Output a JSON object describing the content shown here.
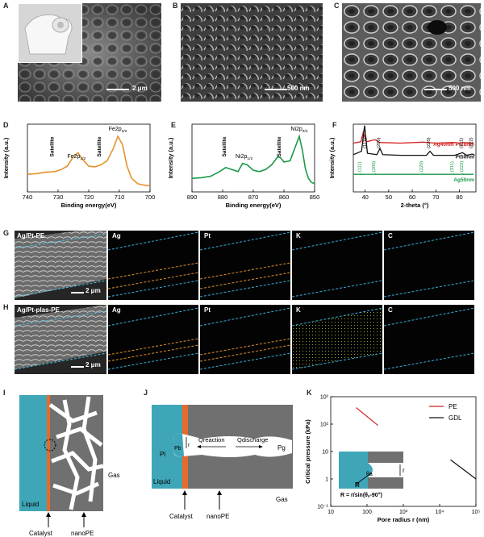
{
  "panels": {
    "A": {
      "label": "A",
      "scale": "2 μm"
    },
    "B": {
      "label": "B",
      "scale": "500 nm"
    },
    "C": {
      "label": "C",
      "scale": "500 nm"
    },
    "D": {
      "label": "D"
    },
    "E": {
      "label": "E"
    },
    "F": {
      "label": "F"
    },
    "G": {
      "label": "G",
      "title": "Ag/Pt-PE",
      "scale": "2 μm",
      "maps": [
        "Ag",
        "Pt",
        "K",
        "C"
      ]
    },
    "H": {
      "label": "H",
      "title": "Ag/Pt-plas-PE",
      "scale": "2 μm",
      "maps": [
        "Ag",
        "Pt",
        "K",
        "C"
      ]
    },
    "I": {
      "label": "I",
      "liquid": "Liquid",
      "gas": "Gas",
      "catalyst": "Catalyst",
      "nanope": "nanoPE"
    },
    "J": {
      "label": "J",
      "pl": "Pl",
      "pb": "Pb",
      "pg": "Pg",
      "r": "r",
      "q1": "Qreaction",
      "q2": "Qdischarge",
      "liquid": "Liquid",
      "gas": "Gas",
      "catalyst": "Catalyst",
      "nanope": "nanoPE"
    },
    "K": {
      "label": "K"
    }
  },
  "chart_data": [
    {
      "id": "D",
      "type": "line",
      "xlabel": "Binding energy(eV)",
      "ylabel": "Intensity (a.u.)",
      "xlim": [
        740,
        700
      ],
      "xticks": [
        740,
        730,
        720,
        710,
        700
      ],
      "series": [
        {
          "color": "#e8912d",
          "x": [
            740,
            737,
            734,
            731,
            729,
            727,
            725,
            723.5,
            722,
            720,
            718,
            716,
            714,
            712,
            710.5,
            709,
            707.5,
            706,
            704,
            702,
            700
          ],
          "y": [
            0.26,
            0.27,
            0.29,
            0.3,
            0.33,
            0.38,
            0.52,
            0.58,
            0.48,
            0.38,
            0.37,
            0.4,
            0.46,
            0.64,
            0.82,
            0.7,
            0.38,
            0.2,
            0.12,
            0.1,
            0.09
          ]
        }
      ],
      "annotations": [
        {
          "text": "Satellite",
          "x": 731.5
        },
        {
          "text": "Fe2p1/2",
          "x": 724
        },
        {
          "text": "Satellite",
          "x": 716
        },
        {
          "text": "Fe2p3/2",
          "x": 710.5
        }
      ]
    },
    {
      "id": "E",
      "type": "line",
      "xlabel": "Binding energy(eV)",
      "ylabel": "Intensity (a.u.)",
      "xlim": [
        890,
        850
      ],
      "xticks": [
        890,
        880,
        870,
        860,
        850
      ],
      "series": [
        {
          "color": "#1a9a48",
          "x": [
            890,
            887,
            884,
            881,
            879,
            877,
            875,
            873.5,
            872,
            870,
            868,
            866,
            864,
            862,
            861,
            860,
            858,
            856,
            855,
            854,
            853,
            852,
            851,
            850
          ],
          "y": [
            0.2,
            0.21,
            0.23,
            0.3,
            0.36,
            0.33,
            0.3,
            0.42,
            0.4,
            0.32,
            0.3,
            0.33,
            0.4,
            0.52,
            0.5,
            0.44,
            0.46,
            0.7,
            0.82,
            0.62,
            0.34,
            0.2,
            0.14,
            0.12
          ]
        }
      ],
      "annotations": [
        {
          "text": "Satellite",
          "x": 879
        },
        {
          "text": "Ni2p1/2",
          "x": 873
        },
        {
          "text": "Satellite",
          "x": 861
        },
        {
          "text": "Ni2p3/2",
          "x": 855
        }
      ]
    },
    {
      "id": "F",
      "type": "line",
      "xlabel": "2-theta (°)",
      "ylabel": "Intensity (a.u.)",
      "xlim": [
        35,
        87
      ],
      "xticks": [
        40,
        50,
        60,
        70,
        80
      ],
      "series": [
        {
          "name": "Ag40nm Pt18nm",
          "color": "#d42020",
          "x": [
            35,
            38.2,
            39.2,
            40.5,
            44.3,
            46,
            55,
            64.5,
            70,
            77.5,
            80,
            81.5,
            86
          ],
          "y": [
            0.72,
            0.74,
            0.88,
            0.74,
            0.77,
            0.73,
            0.72,
            0.735,
            0.72,
            0.73,
            0.722,
            0.728,
            0.72
          ]
        },
        {
          "name": "Pt50nm",
          "color": "#111111",
          "x": [
            35,
            38.5,
            39.8,
            41,
            45,
            46.3,
            47.5,
            55,
            66,
            67.5,
            69,
            78,
            81.3,
            83,
            85.5,
            86.5
          ],
          "y": [
            0.55,
            0.6,
            0.98,
            0.57,
            0.55,
            0.64,
            0.55,
            0.54,
            0.54,
            0.6,
            0.54,
            0.54,
            0.58,
            0.54,
            0.56,
            0.54
          ]
        },
        {
          "name": "Ag50nm",
          "color": "#1a9a48",
          "x": [
            35,
            86
          ],
          "y": [
            0.26,
            0.26
          ]
        }
      ],
      "annotations": [
        {
          "text": "(111)",
          "x": 40.5
        },
        {
          "text": "(200)",
          "x": 46.3
        },
        {
          "text": "(220)",
          "x": 67.5
        },
        {
          "text": "(311)",
          "x": 81.3
        },
        {
          "text": "(222)",
          "x": 85.5
        },
        {
          "text": "(111)",
          "x": 38.2
        },
        {
          "text": "(200)",
          "x": 44.3
        },
        {
          "text": "(220)",
          "x": 64.5
        },
        {
          "text": "(311)",
          "x": 77.5
        },
        {
          "text": "(222)",
          "x": 81.5
        }
      ]
    },
    {
      "id": "K",
      "type": "line",
      "xlabel": "Pore radius r (nm)",
      "ylabel": "Critical pressure (kPa)",
      "xscale": "log",
      "yscale": "log",
      "xlim": [
        10,
        100000
      ],
      "ylim": [
        0.1,
        1000
      ],
      "xtick_labels": [
        "10",
        "100",
        "10³",
        "10⁴",
        "10⁵"
      ],
      "ytick_labels": [
        "10⁻¹",
        "1",
        "10",
        "10²",
        "10³"
      ],
      "series": [
        {
          "name": "PE",
          "color": "#d42020",
          "x": [
            50,
            200
          ],
          "y": [
            400,
            90
          ]
        },
        {
          "name": "GDL",
          "color": "#111111",
          "x": [
            20000,
            100000
          ],
          "y": [
            5,
            1
          ]
        }
      ],
      "legend": "top-right",
      "inset": {
        "formula": "R = r/sin(θₐ-90°)",
        "theta": "θa",
        "R": "R",
        "r": "r"
      }
    }
  ]
}
